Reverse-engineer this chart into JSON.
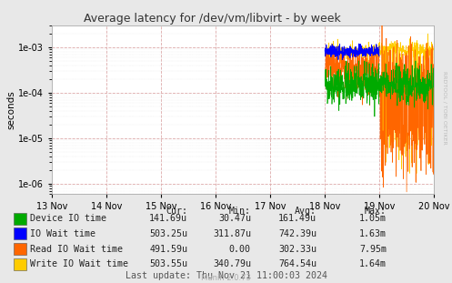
{
  "title": "Average latency for /dev/vm/libvirt - by week",
  "ylabel": "seconds",
  "bg_color": "#E8E8E8",
  "plot_bg_color": "#FFFFFF",
  "ylim_min": 6e-07,
  "ylim_max": 0.003,
  "x_labels": [
    "13 Nov",
    "14 Nov",
    "15 Nov",
    "16 Nov",
    "17 Nov",
    "18 Nov",
    "19 Nov",
    "20 Nov"
  ],
  "series": {
    "device_io": {
      "color": "#00AA00",
      "label": "Device IO time"
    },
    "io_wait": {
      "color": "#0000FF",
      "label": "IO Wait time"
    },
    "read_io": {
      "color": "#FF6600",
      "label": "Read IO Wait time"
    },
    "write_io": {
      "color": "#FFCC00",
      "label": "Write IO Wait time"
    }
  },
  "table_headers": [
    "Cur:",
    "Min:",
    "Avg:",
    "Max:"
  ],
  "table_data": [
    [
      "141.69u",
      "30.47u",
      "161.49u",
      "1.05m"
    ],
    [
      "503.25u",
      "311.87u",
      "742.39u",
      "1.63m"
    ],
    [
      "491.59u",
      "0.00",
      "302.33u",
      "7.95m"
    ],
    [
      "503.55u",
      "340.79u",
      "764.54u",
      "1.64m"
    ]
  ],
  "footer": "Last update: Thu Nov 21 11:00:03 2024",
  "munin_version": "Munin 2.0.73",
  "watermark": "RRDTOOL / TOBI OETIKER"
}
